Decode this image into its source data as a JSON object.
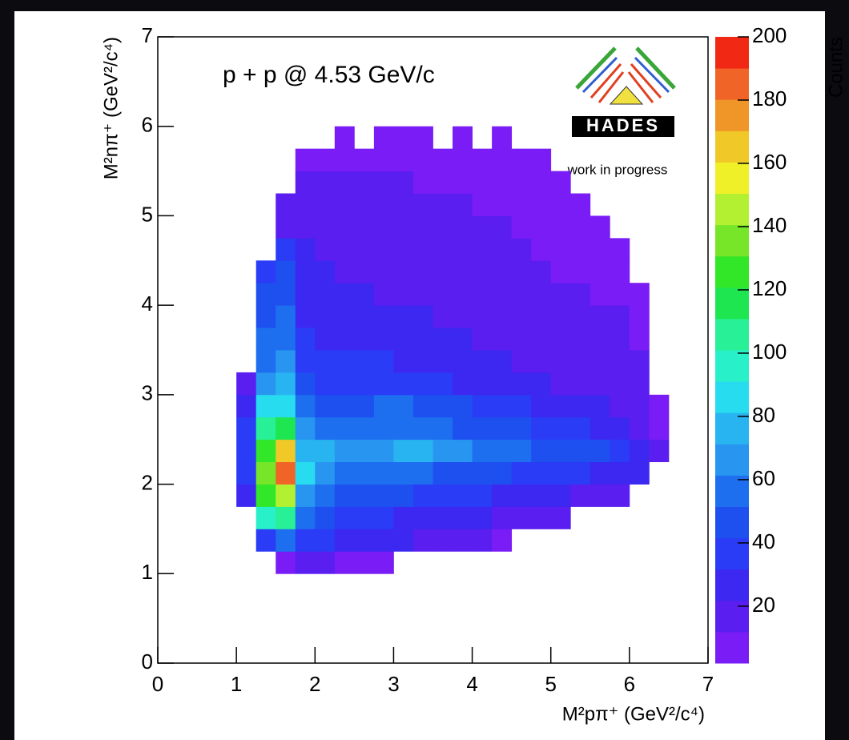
{
  "chart_data": {
    "type": "heatmap",
    "title": "p + p @ 4.53 GeV/c",
    "annotation": "work in progress",
    "logo_text": "HADES",
    "x_label": "M²pπ⁺ (GeV²/c⁴)",
    "y_label": "M²nπ⁺ (GeV²/c⁴)",
    "colorbar_label": "Counts",
    "xlim": [
      0,
      7
    ],
    "xticks": [
      0,
      1,
      2,
      3,
      4,
      5,
      6,
      7
    ],
    "ylim": [
      0,
      7
    ],
    "yticks": [
      0,
      1,
      2,
      3,
      4,
      5,
      6,
      7
    ],
    "zlim": [
      2,
      200
    ],
    "zticks": [
      20,
      40,
      60,
      80,
      100,
      120,
      140,
      160,
      180,
      200
    ],
    "palette": [
      "#7a1cf5",
      "#5a1ef0",
      "#3c28f0",
      "#2a3cf5",
      "#1e50f0",
      "#1e6ef0",
      "#2896f0",
      "#28b4f0",
      "#28dcf0",
      "#28f0c8",
      "#28f096",
      "#1ee650",
      "#32e628",
      "#78e628",
      "#b4f032",
      "#f0f028",
      "#f0c828",
      "#f09628",
      "#f06428",
      "#f02814"
    ],
    "xbins": [
      1.0,
      1.25,
      1.5,
      1.75,
      2.0,
      2.25,
      2.5,
      2.75,
      3.0,
      3.25,
      3.5,
      3.75,
      4.0,
      4.25,
      4.5,
      4.75,
      5.0,
      5.25,
      5.5,
      5.75,
      6.0,
      6.25,
      6.5
    ],
    "ybins": [
      1.0,
      1.25,
      1.5,
      1.75,
      2.0,
      2.25,
      2.5,
      2.75,
      3.0,
      3.25,
      3.5,
      3.75,
      4.0,
      4.25,
      4.5,
      4.75,
      5.0,
      5.25,
      5.5,
      5.75,
      6.0
    ],
    "z": [
      [
        null,
        null,
        10,
        12,
        12,
        10,
        8,
        6,
        null,
        null,
        null,
        null,
        null,
        null,
        null,
        null,
        null,
        null,
        null,
        null,
        null,
        null
      ],
      [
        null,
        40,
        60,
        40,
        35,
        30,
        28,
        25,
        22,
        20,
        18,
        15,
        12,
        10,
        null,
        null,
        null,
        null,
        null,
        null,
        null,
        null
      ],
      [
        null,
        100,
        110,
        60,
        45,
        40,
        38,
        35,
        30,
        30,
        28,
        25,
        22,
        20,
        18,
        15,
        12,
        null,
        null,
        null,
        null,
        null
      ],
      [
        30,
        130,
        150,
        70,
        55,
        50,
        45,
        45,
        45,
        40,
        40,
        35,
        35,
        30,
        28,
        25,
        22,
        20,
        15,
        12,
        null,
        null
      ],
      [
        40,
        140,
        190,
        85,
        65,
        60,
        60,
        55,
        55,
        55,
        50,
        50,
        45,
        45,
        40,
        40,
        35,
        35,
        30,
        30,
        25,
        null
      ],
      [
        40,
        130,
        170,
        80,
        75,
        70,
        70,
        70,
        75,
        75,
        70,
        65,
        60,
        55,
        55,
        50,
        50,
        45,
        45,
        40,
        30,
        15
      ],
      [
        35,
        110,
        120,
        70,
        55,
        55,
        55,
        60,
        60,
        55,
        55,
        50,
        50,
        45,
        45,
        40,
        35,
        35,
        30,
        25,
        20,
        10
      ],
      [
        30,
        90,
        90,
        55,
        45,
        45,
        50,
        55,
        55,
        50,
        45,
        45,
        40,
        35,
        35,
        30,
        28,
        25,
        22,
        20,
        18,
        8
      ],
      [
        20,
        70,
        75,
        45,
        40,
        40,
        40,
        40,
        40,
        35,
        35,
        30,
        30,
        28,
        25,
        22,
        20,
        20,
        18,
        15,
        15,
        null
      ],
      [
        null,
        60,
        65,
        40,
        35,
        35,
        35,
        32,
        30,
        30,
        28,
        25,
        25,
        22,
        20,
        20,
        18,
        15,
        15,
        12,
        12,
        null
      ],
      [
        null,
        55,
        60,
        35,
        30,
        30,
        28,
        28,
        25,
        25,
        22,
        22,
        20,
        20,
        18,
        18,
        15,
        15,
        12,
        12,
        10,
        null
      ],
      [
        null,
        50,
        55,
        30,
        28,
        25,
        25,
        22,
        22,
        22,
        20,
        20,
        18,
        18,
        15,
        15,
        15,
        12,
        12,
        12,
        10,
        null
      ],
      [
        null,
        45,
        50,
        28,
        25,
        22,
        22,
        20,
        20,
        20,
        18,
        18,
        15,
        15,
        15,
        12,
        12,
        12,
        10,
        10,
        10,
        null
      ],
      [
        null,
        35,
        45,
        25,
        22,
        20,
        20,
        18,
        18,
        18,
        15,
        15,
        15,
        12,
        12,
        12,
        10,
        10,
        10,
        10,
        null,
        null
      ],
      [
        null,
        null,
        40,
        22,
        20,
        20,
        18,
        18,
        15,
        15,
        15,
        15,
        12,
        12,
        12,
        10,
        10,
        10,
        10,
        8,
        null,
        null
      ],
      [
        null,
        null,
        20,
        18,
        18,
        16,
        16,
        15,
        15,
        15,
        12,
        12,
        12,
        12,
        10,
        10,
        10,
        10,
        8,
        null,
        null,
        null
      ],
      [
        null,
        null,
        12,
        15,
        15,
        15,
        14,
        14,
        12,
        12,
        12,
        12,
        10,
        10,
        10,
        10,
        10,
        8,
        null,
        null,
        null,
        null
      ],
      [
        null,
        null,
        null,
        12,
        12,
        12,
        12,
        12,
        12,
        10,
        10,
        10,
        10,
        10,
        10,
        8,
        8,
        null,
        null,
        null,
        null,
        null
      ],
      [
        null,
        null,
        null,
        8,
        10,
        10,
        10,
        10,
        10,
        8,
        8,
        8,
        8,
        8,
        8,
        6,
        null,
        null,
        null,
        null,
        null,
        null
      ],
      [
        null,
        null,
        null,
        null,
        null,
        4,
        null,
        4,
        4,
        4,
        null,
        4,
        null,
        4,
        null,
        null,
        null,
        null,
        null,
        null,
        null,
        null
      ]
    ]
  }
}
